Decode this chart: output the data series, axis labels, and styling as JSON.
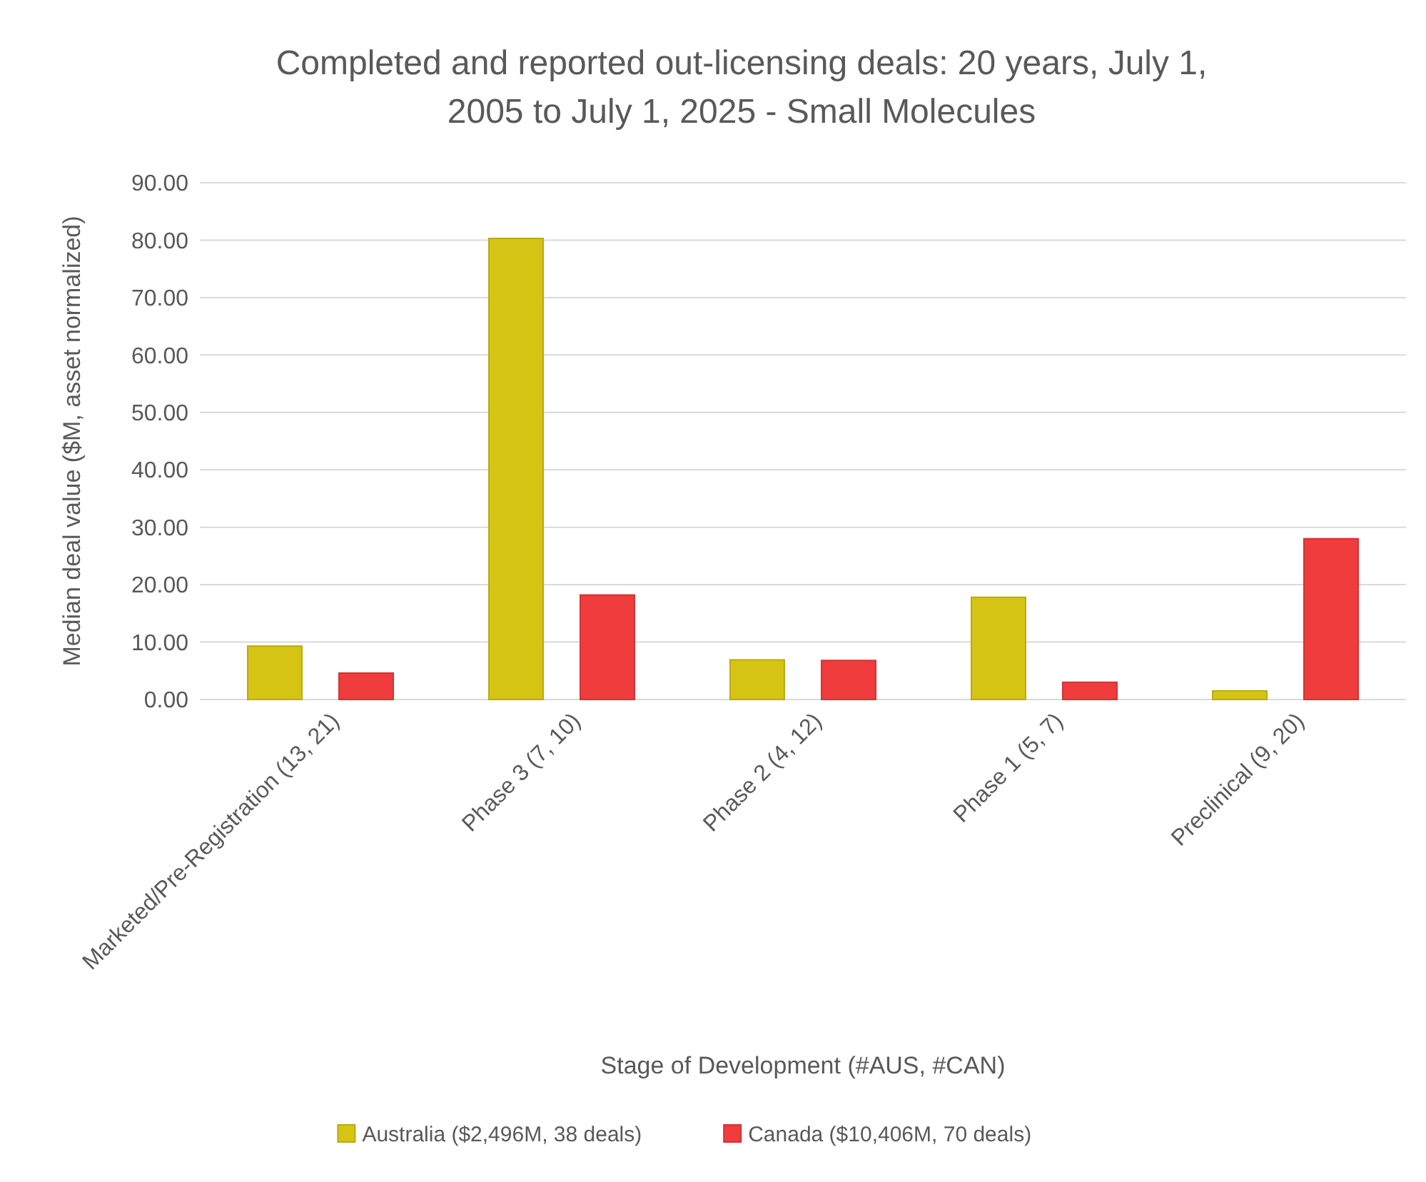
{
  "chart_data": {
    "type": "bar",
    "title": "Completed and reported out-licensing deals: 20 years, July 1, 2005 to July 1, 2025 - Small Molecules",
    "xlabel": "Stage of Development (#AUS, #CAN)",
    "ylabel": "Median deal value ($M, asset normalized)",
    "categories": [
      "Marketed/Pre-Registration (13, 21)",
      "Phase 3 (7, 10)",
      "Phase 2 (4, 12)",
      "Phase 1 (5, 7)",
      "Preclinical (9, 20)"
    ],
    "series": [
      {
        "name": "Australia ($2,496M, 38 deals)",
        "color": "#d6c414",
        "values": [
          9.3,
          80.3,
          6.9,
          17.8,
          1.5
        ]
      },
      {
        "name": "Canada ($10,406M, 70 deals)",
        "color": "#f03c3c",
        "values": [
          4.6,
          18.2,
          6.8,
          3.0,
          28.0
        ]
      }
    ],
    "ylim": [
      0,
      90
    ],
    "yticks": [
      {
        "value": 0,
        "label": "0.00"
      },
      {
        "value": 10,
        "label": "10.00"
      },
      {
        "value": 20,
        "label": "20.00"
      },
      {
        "value": 30,
        "label": "30.00"
      },
      {
        "value": 40,
        "label": "40.00"
      },
      {
        "value": 50,
        "label": "50.00"
      },
      {
        "value": 60,
        "label": "60.00"
      },
      {
        "value": 70,
        "label": "70.00"
      },
      {
        "value": 80,
        "label": "80.00"
      },
      {
        "value": 90,
        "label": "90.00"
      }
    ],
    "grid": "y",
    "legend": "bottom"
  }
}
